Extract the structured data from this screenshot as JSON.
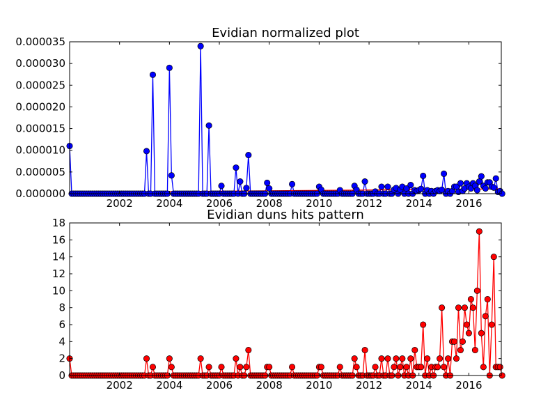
{
  "chart_data": [
    {
      "type": "line",
      "title": "Evidian normalized plot",
      "xlabel": "",
      "ylabel": "",
      "xlim": [
        2000.0,
        2017.3
      ],
      "ylim": [
        0,
        3.5e-05
      ],
      "x_ticks": [
        "2002",
        "2004",
        "2006",
        "2008",
        "2010",
        "2012",
        "2014",
        "2016"
      ],
      "y_ticks": [
        "0.000000",
        "0.000005",
        "0.000010",
        "0.000015",
        "0.000020",
        "0.000025",
        "0.000030",
        "0.000035"
      ],
      "grid": false,
      "series": [
        {
          "color": "#0000ff",
          "marker": "circle",
          "x": [
            2000.0,
            2003.08,
            2003.33,
            2004.0,
            2004.08,
            2005.25,
            2005.58,
            2006.08,
            2006.67,
            2006.83,
            2007.08,
            2007.17,
            2007.92,
            2008.0,
            2008.92,
            2010.0,
            2010.08,
            2010.83,
            2011.42,
            2011.5,
            2011.83,
            2012.25,
            2012.5,
            2012.75,
            2013.0,
            2013.08,
            2013.25,
            2013.33,
            2013.5,
            2013.67,
            2013.83,
            2013.92,
            2014.0,
            2014.08,
            2014.17,
            2014.33,
            2014.5,
            2014.67,
            2014.75,
            2014.83,
            2014.92,
            2015.0,
            2015.17,
            2015.33,
            2015.42,
            2015.5,
            2015.58,
            2015.67,
            2015.75,
            2015.83,
            2015.92,
            2016.0,
            2016.08,
            2016.17,
            2016.25,
            2016.33,
            2016.42,
            2016.5,
            2016.58,
            2016.67,
            2016.75,
            2016.83,
            2016.92,
            2017.0,
            2017.08,
            2017.17,
            2017.25
          ],
          "values": [
            1.1e-05,
            9.8e-06,
            2.74e-05,
            2.9e-05,
            4.2e-06,
            3.4e-05,
            1.57e-05,
            1.8e-06,
            6e-06,
            2.8e-06,
            1.3e-06,
            8.9e-06,
            2.5e-06,
            1.2e-06,
            2.2e-06,
            1.6e-06,
            9e-07,
            8e-07,
            1.8e-06,
            9e-07,
            2.8e-06,
            5e-07,
            1.6e-06,
            1.6e-06,
            9e-07,
            1.3e-06,
            9e-07,
            1.6e-06,
            1.2e-06,
            2e-06,
            8e-07,
            6e-07,
            8e-07,
            1.1e-06,
            4.1e-06,
            8e-07,
            6e-07,
            6e-07,
            8e-07,
            6e-07,
            9e-07,
            4.6e-06,
            6e-07,
            6e-07,
            1.6e-06,
            1.6e-06,
            4e-07,
            2.4e-06,
            6e-07,
            1.2e-06,
            2.4e-06,
            1.6e-06,
            1.2e-06,
            2.4e-06,
            1.8e-06,
            8e-07,
            2.8e-06,
            4e-06,
            1.8e-06,
            1.2e-06,
            2.6e-06,
            2.6e-06,
            1.6e-06,
            1.4e-06,
            3.5e-06,
            4e-07,
            6e-07
          ]
        },
        {
          "color": "#ff0000",
          "marker": "none",
          "x": [
            2000.0,
            2017.3
          ],
          "values": [
            3e-07,
            1.1e-06
          ]
        }
      ]
    },
    {
      "type": "line",
      "title": "Evidian duns hits pattern",
      "xlabel": "",
      "ylabel": "",
      "xlim": [
        2000.0,
        2017.3
      ],
      "ylim": [
        0,
        18
      ],
      "x_ticks": [
        "2002",
        "2004",
        "2006",
        "2008",
        "2010",
        "2012",
        "2014",
        "2016"
      ],
      "y_ticks": [
        "0",
        "2",
        "4",
        "6",
        "8",
        "10",
        "12",
        "14",
        "16",
        "18"
      ],
      "grid": false,
      "series": [
        {
          "color": "#ff0000",
          "marker": "circle",
          "x": [
            2000.0,
            2003.08,
            2003.33,
            2004.0,
            2004.08,
            2005.25,
            2005.58,
            2006.08,
            2006.67,
            2006.83,
            2007.08,
            2007.17,
            2007.92,
            2008.0,
            2008.92,
            2010.0,
            2010.08,
            2010.83,
            2011.42,
            2011.5,
            2011.83,
            2012.25,
            2012.5,
            2012.75,
            2013.0,
            2013.08,
            2013.25,
            2013.33,
            2013.5,
            2013.67,
            2013.83,
            2013.92,
            2014.0,
            2014.08,
            2014.17,
            2014.33,
            2014.5,
            2014.67,
            2014.75,
            2014.83,
            2014.92,
            2015.0,
            2015.17,
            2015.33,
            2015.42,
            2015.5,
            2015.58,
            2015.67,
            2015.75,
            2015.83,
            2015.92,
            2016.0,
            2016.08,
            2016.17,
            2016.25,
            2016.33,
            2016.42,
            2016.5,
            2016.58,
            2016.67,
            2016.75,
            2016.83,
            2016.92,
            2017.0,
            2017.08,
            2017.17,
            2017.25
          ],
          "values": [
            2,
            2,
            1,
            2,
            1,
            2,
            1,
            1,
            2,
            1,
            1,
            3,
            1,
            1,
            1,
            1,
            1,
            1,
            2,
            1,
            3,
            1,
            2,
            2,
            1,
            2,
            1,
            2,
            1,
            2,
            3,
            1,
            1,
            1,
            6,
            2,
            1,
            1,
            1,
            2,
            8,
            1,
            2,
            4,
            4,
            2,
            8,
            3,
            4,
            8,
            6,
            5,
            9,
            8,
            3,
            10,
            17,
            5,
            1,
            7,
            9,
            0,
            6,
            14,
            1,
            1,
            1
          ]
        }
      ]
    }
  ]
}
